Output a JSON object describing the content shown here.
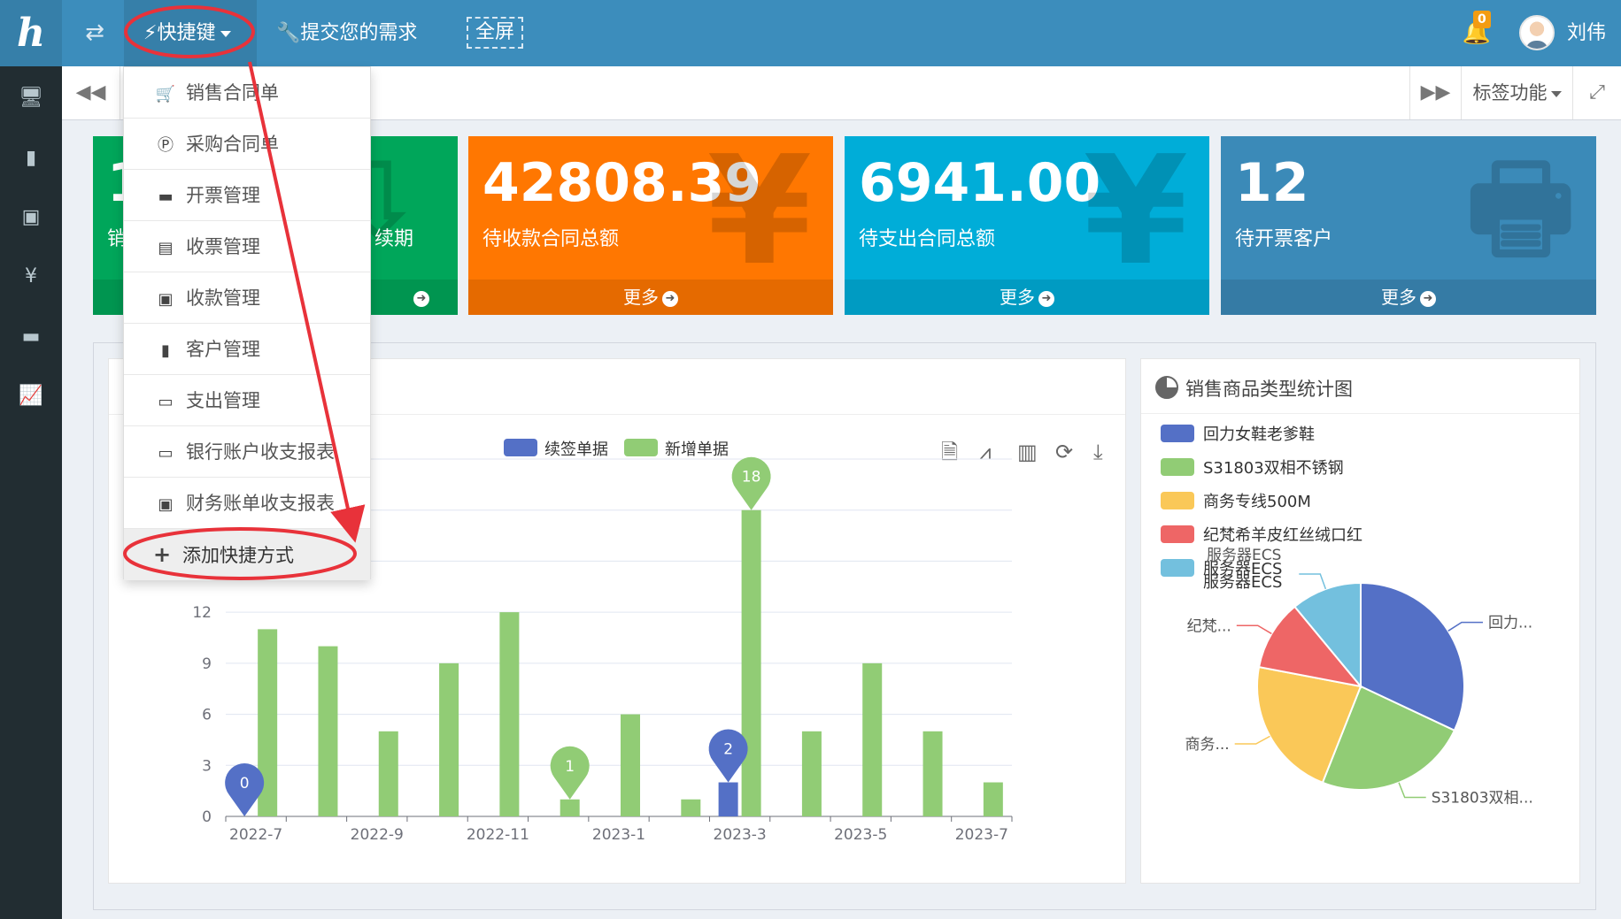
{
  "header": {
    "logo": "ℎ",
    "swap_icon": "⇄",
    "quick_label": "⚡快捷键",
    "submit_label": "🔧提交您的需求",
    "fullscreen_label": "全屏",
    "notification_count": "0",
    "user_name": "刘伟"
  },
  "sidebar": {
    "icons": [
      "desktop-icon",
      "suitcase-icon",
      "briefcase-icon",
      "yen-icon",
      "folder-icon",
      "line-chart-icon"
    ],
    "glyphs": [
      "🖥",
      "▮",
      "▣",
      "¥",
      "▬",
      "📈"
    ]
  },
  "tabsbar": {
    "back": "◀◀",
    "forward": "▶▶",
    "tags_label": "标签功能",
    "expand": "⤢"
  },
  "cards": [
    {
      "value": "1",
      "label": "销",
      "more": "",
      "color": "#00a65a",
      "icon": "⇩"
    },
    {
      "value": "42808.39",
      "label": "待收款合同总额",
      "more": "更多",
      "color": "#ff7701",
      "icon": "¥"
    },
    {
      "value": "6941.00",
      "label": "待支出合同总额",
      "more": "更多",
      "color": "#00add8",
      "icon": "¥"
    },
    {
      "value": "12",
      "label": "待开票客户",
      "more": "更多",
      "color": "#3b8ab8",
      "icon": "🖶"
    }
  ],
  "card_green_extra": "续期",
  "dropdown": {
    "items": [
      {
        "icon": "🛒",
        "label": "销售合同单"
      },
      {
        "icon": "Ⓟ",
        "label": "采购合同单"
      },
      {
        "icon": "▬",
        "label": "开票管理"
      },
      {
        "icon": "▤",
        "label": "收票管理"
      },
      {
        "icon": "▣",
        "label": "收款管理"
      },
      {
        "icon": "▮",
        "label": "客户管理"
      },
      {
        "icon": "▭",
        "label": "支出管理"
      },
      {
        "icon": "▭",
        "label": "银行账户收支报表"
      },
      {
        "icon": "▣",
        "label": "财务账单收支报表"
      }
    ],
    "add_label": "添加快捷方式",
    "add_icon": "+"
  },
  "pie_panel_title": "销售商品类型统计图",
  "chart_data": [
    {
      "type": "bar",
      "categories": [
        "2022-7",
        "2022-8",
        "2022-9",
        "2022-10",
        "2022-11",
        "2022-12",
        "2023-1",
        "2023-2",
        "2023-3",
        "2023-4",
        "2023-5",
        "2023-6",
        "2023-7"
      ],
      "x_tick_labels": [
        "2022-7",
        "2022-9",
        "2022-11",
        "2023-1",
        "2023-3",
        "2023-5",
        "2023-7"
      ],
      "y_tick_labels": [
        "0",
        "3",
        "6",
        "9",
        "12"
      ],
      "ylim": [
        0,
        21
      ],
      "series": [
        {
          "name": "续签单据",
          "color": "#5470c6",
          "values": [
            0,
            0,
            0,
            0,
            0,
            0,
            0,
            0,
            2,
            0,
            0,
            0,
            0
          ]
        },
        {
          "name": "新增单据",
          "color": "#91cc75",
          "values": [
            11,
            10,
            5,
            9,
            12,
            1,
            6,
            1,
            18,
            5,
            9,
            5,
            2
          ]
        }
      ],
      "markers": [
        {
          "label": "0",
          "series": "续签单据",
          "category": "2022-7",
          "value": 0
        },
        {
          "label": "1",
          "series": "新增单据",
          "category": "2022-12",
          "value": 1
        },
        {
          "label": "2",
          "series": "续签单据",
          "category": "2023-3",
          "value": 2
        },
        {
          "label": "18",
          "series": "新增单据",
          "category": "2023-3",
          "value": 18
        }
      ],
      "toolbox": [
        "data-view-icon",
        "line-toggle-icon",
        "bar-toggle-icon",
        "restore-icon",
        "save-image-icon"
      ],
      "grid": true,
      "legend_position": "top"
    },
    {
      "type": "pie",
      "legend": [
        {
          "name": "回力女鞋老爹鞋",
          "color": "#5470c6"
        },
        {
          "name": "S31803双相不锈钢",
          "color": "#91cc75"
        },
        {
          "name": "商务专线500M",
          "color": "#fac858"
        },
        {
          "name": "纪梵希羊皮红丝绒口红",
          "color": "#ee6666"
        },
        {
          "name": "服务器ECS",
          "color": "#73c0de"
        }
      ],
      "values": [
        32,
        24,
        22,
        11,
        11
      ],
      "slice_labels": [
        "回力...",
        "S31803双相...",
        "商务...",
        "纪梵...",
        "服务器ECS"
      ],
      "legend_overlap_label": "服务器ECS",
      "legend_position": "top-left"
    }
  ]
}
